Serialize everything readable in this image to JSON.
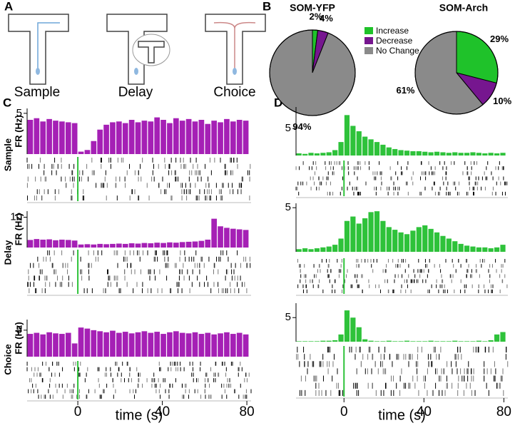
{
  "panel_labels": [
    "A",
    "B",
    "C",
    "D"
  ],
  "maze_labels": [
    "Sample",
    "Delay",
    "Choice"
  ],
  "chart_data": [
    {
      "type": "pie",
      "title": "SOM-YFP",
      "categories": [
        "Increase",
        "Decrease",
        "No Change"
      ],
      "values": [
        2,
        4,
        94
      ],
      "value_labels": [
        "2%",
        "4%",
        "94%"
      ],
      "colors": [
        "#1fc22a",
        "#76168f",
        "#8a8a8a"
      ],
      "legend": "between"
    },
    {
      "type": "pie",
      "title": "SOM-Arch",
      "categories": [
        "Increase",
        "Decrease",
        "No Change"
      ],
      "values": [
        29,
        10,
        61
      ],
      "value_labels": [
        "29%",
        "10%",
        "61%"
      ],
      "colors": [
        "#1fc22a",
        "#76168f",
        "#8a8a8a"
      ]
    },
    {
      "type": "histogram",
      "title": "Sample",
      "y_label": "FR (Hz)",
      "color": "#a520b5",
      "bins": [
        -24,
        -21,
        -18,
        -15,
        -12,
        -9,
        -6,
        -3,
        0,
        3,
        6,
        9,
        12,
        15,
        18,
        21,
        24,
        27,
        30,
        33,
        36,
        39,
        42,
        45,
        48,
        51,
        54,
        57,
        60,
        63,
        66,
        69,
        72,
        75,
        78,
        81
      ],
      "values": [
        4.2,
        4.4,
        4.0,
        4.3,
        4.1,
        4.0,
        3.9,
        3.8,
        0.3,
        0.5,
        1.6,
        3.0,
        3.6,
        3.9,
        4.0,
        3.8,
        4.2,
        3.9,
        4.1,
        4.0,
        4.5,
        4.2,
        3.8,
        4.4,
        4.1,
        4.3,
        4.0,
        4.2,
        3.7,
        4.1,
        3.9,
        4.3,
        4.0,
        4.2,
        4.1
      ],
      "xlim": [
        -24,
        82
      ],
      "ylim": [
        0,
        5.6
      ],
      "yticks": [
        5
      ]
    },
    {
      "type": "histogram",
      "title": "Delay",
      "y_label": "FR (Hz)",
      "color": "#a520b5",
      "bins": [
        -24,
        -21,
        -18,
        -15,
        -12,
        -9,
        -6,
        -3,
        0,
        3,
        6,
        9,
        12,
        15,
        18,
        21,
        24,
        27,
        30,
        33,
        36,
        39,
        42,
        45,
        48,
        51,
        54,
        57,
        60,
        63,
        66,
        69,
        72,
        75,
        78,
        81
      ],
      "values": [
        2.5,
        2.8,
        2.6,
        2.7,
        2.4,
        2.6,
        2.5,
        2.3,
        1.0,
        1.1,
        1.0,
        1.2,
        1.1,
        1.2,
        1.3,
        1.2,
        1.4,
        1.3,
        1.5,
        1.4,
        1.6,
        1.5,
        1.7,
        1.6,
        1.8,
        1.9,
        2.0,
        2.2,
        2.6,
        9.5,
        7.0,
        6.5,
        6.2,
        6.0,
        5.8
      ],
      "xlim": [
        -24,
        82
      ],
      "ylim": [
        0,
        12
      ],
      "yticks": [
        10
      ]
    },
    {
      "type": "histogram",
      "title": "Choice",
      "y_label": "FR (Hz)",
      "color": "#a520b5",
      "bins": [
        -24,
        -21,
        -18,
        -15,
        -12,
        -9,
        -6,
        -3,
        0,
        3,
        6,
        9,
        12,
        15,
        18,
        21,
        24,
        27,
        30,
        33,
        36,
        39,
        42,
        45,
        48,
        51,
        54,
        57,
        60,
        63,
        66,
        69,
        72,
        75,
        78,
        81
      ],
      "values": [
        4.3,
        4.5,
        4.2,
        4.6,
        4.4,
        4.3,
        4.5,
        2.5,
        5.5,
        5.3,
        5.0,
        4.8,
        4.6,
        4.9,
        4.5,
        4.7,
        4.4,
        4.6,
        4.8,
        4.5,
        4.7,
        4.3,
        4.6,
        4.8,
        4.5,
        4.4,
        4.6,
        4.3,
        4.5,
        4.2,
        4.4,
        4.6,
        4.3,
        4.5,
        4.2
      ],
      "xlim": [
        -24,
        82
      ],
      "ylim": [
        0,
        7
      ],
      "yticks": [
        5
      ],
      "xticks": [
        0,
        40,
        80
      ],
      "x_label": "time (s)"
    },
    {
      "type": "histogram",
      "color": "#2ec23a",
      "bins": [
        -24,
        -21,
        -18,
        -15,
        -12,
        -9,
        -6,
        -3,
        0,
        3,
        6,
        9,
        12,
        15,
        18,
        21,
        24,
        27,
        30,
        33,
        36,
        39,
        42,
        45,
        48,
        51,
        54,
        57,
        60,
        63,
        66,
        69,
        72,
        75,
        78,
        81
      ],
      "values": [
        0.4,
        0.3,
        0.5,
        0.4,
        0.5,
        0.6,
        1.0,
        2.5,
        7.5,
        5.5,
        4.5,
        3.5,
        3.0,
        2.5,
        2.0,
        1.5,
        1.2,
        1.0,
        0.9,
        0.8,
        0.8,
        0.7,
        0.6,
        0.7,
        0.6,
        0.5,
        0.6,
        0.5,
        0.5,
        0.6,
        0.5,
        0.4,
        0.5,
        0.4,
        0.5
      ],
      "xlim": [
        -24,
        82
      ],
      "ylim": [
        0,
        9
      ],
      "yticks": [
        5
      ]
    },
    {
      "type": "histogram",
      "color": "#2ec23a",
      "bins": [
        -24,
        -21,
        -18,
        -15,
        -12,
        -9,
        -6,
        -3,
        0,
        3,
        6,
        9,
        12,
        15,
        18,
        21,
        24,
        27,
        30,
        33,
        36,
        39,
        42,
        45,
        48,
        51,
        54,
        57,
        60,
        63,
        66,
        69,
        72,
        75,
        78,
        81
      ],
      "values": [
        0.3,
        0.4,
        0.3,
        0.4,
        0.5,
        0.6,
        0.8,
        1.5,
        3.5,
        4.0,
        3.2,
        3.8,
        4.5,
        4.6,
        3.5,
        2.8,
        2.5,
        2.2,
        2.0,
        2.4,
        2.8,
        3.0,
        2.6,
        2.2,
        1.8,
        1.5,
        1.2,
        0.9,
        0.7,
        0.6,
        0.5,
        0.5,
        0.4,
        0.5,
        0.8
      ],
      "xlim": [
        -24,
        82
      ],
      "ylim": [
        0,
        5.5
      ],
      "yticks": [
        5
      ]
    },
    {
      "type": "histogram",
      "color": "#2ec23a",
      "bins": [
        -24,
        -21,
        -18,
        -15,
        -12,
        -9,
        -6,
        -3,
        0,
        3,
        6,
        9,
        12,
        15,
        18,
        21,
        24,
        27,
        30,
        33,
        36,
        39,
        42,
        45,
        48,
        51,
        54,
        57,
        60,
        63,
        66,
        69,
        72,
        75,
        78,
        81
      ],
      "values": [
        0.1,
        0.1,
        0.1,
        0.1,
        0.2,
        0.2,
        0.3,
        1.5,
        6.5,
        5.0,
        3.0,
        0.5,
        0.2,
        0.1,
        0.1,
        0.2,
        0.1,
        0.1,
        0.2,
        0.1,
        0.1,
        0.1,
        0.2,
        0.1,
        0.1,
        0.1,
        0.2,
        0.1,
        0.1,
        0.1,
        0.2,
        0.1,
        0.3,
        1.5,
        2.0
      ],
      "xlim": [
        -24,
        82
      ],
      "ylim": [
        0,
        8
      ],
      "yticks": [
        5
      ],
      "xticks": [
        0,
        40,
        80
      ],
      "x_label": "time (s)"
    }
  ]
}
